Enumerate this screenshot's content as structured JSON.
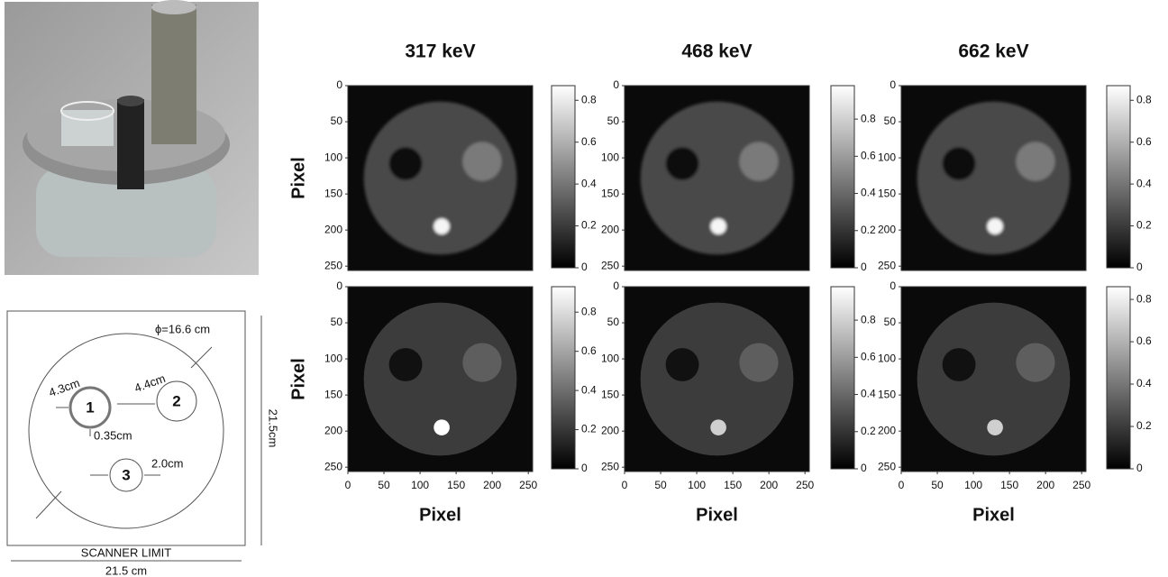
{
  "photo": {
    "caption": null
  },
  "diagram": {
    "diameter": "ϕ=16.6 cm",
    "dist_a": "4.3cm",
    "dist_b": "4.4cm",
    "insert_1": "1",
    "insert_2": "2",
    "insert_3": "3",
    "wall": "0.35cm",
    "dist_c": "2.0cm",
    "height": "21.5cm",
    "scanner": "SCANNER LIMIT",
    "width": "21.5 cm"
  },
  "panels": {
    "columns": [
      "317 keV",
      "468 keV",
      "662 keV"
    ],
    "y_label": "Pixel",
    "x_label": "Pixel",
    "axis_lim": [
      0,
      256
    ],
    "axis_ticks": [
      0,
      50,
      100,
      150,
      200,
      250
    ],
    "colorbars": [
      {
        "lim": [
          0,
          0.87
        ],
        "ticks": [
          0,
          0.2,
          0.4,
          0.6,
          0.8
        ]
      },
      {
        "lim": [
          0,
          0.98
        ],
        "ticks": [
          0,
          0.2,
          0.4,
          0.6,
          0.8
        ]
      },
      {
        "lim": [
          0,
          0.87
        ],
        "ticks": [
          0,
          0.2,
          0.4,
          0.6,
          0.8
        ]
      },
      {
        "lim": [
          0,
          0.93
        ],
        "ticks": [
          0,
          0.2,
          0.4,
          0.6,
          0.8
        ]
      },
      {
        "lim": [
          0,
          0.98
        ],
        "ticks": [
          0,
          0.2,
          0.4,
          0.6,
          0.8
        ]
      },
      {
        "lim": [
          0,
          0.86
        ],
        "ticks": [
          0,
          0.2,
          0.4,
          0.6,
          0.8
        ]
      }
    ]
  }
}
